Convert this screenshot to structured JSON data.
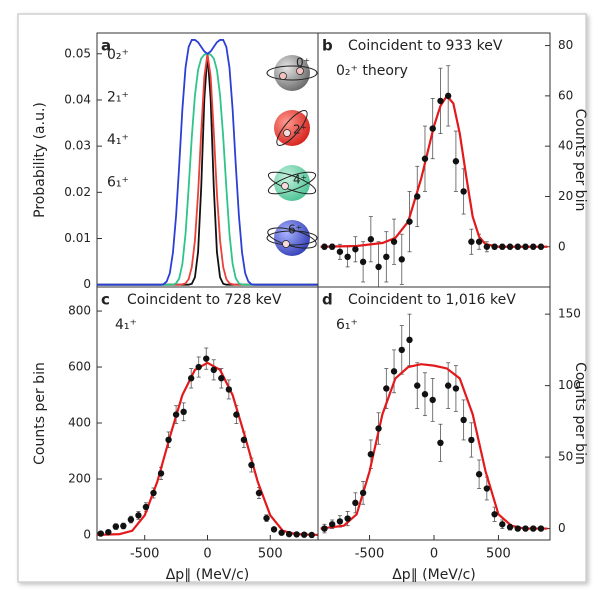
{
  "chart_data": [
    {
      "type": "line",
      "panel": "a",
      "ylabel": "Probability (a.u.)",
      "side": "left",
      "x": [
        -880,
        -400,
        -375,
        -350,
        -325,
        -300,
        -275,
        -250,
        -225,
        -200,
        -175,
        -150,
        -125,
        -100,
        -75,
        -50,
        -25,
        0,
        25,
        50,
        75,
        100,
        125,
        150,
        175,
        200,
        225,
        250,
        275,
        300,
        325,
        350,
        375,
        400,
        880
      ],
      "series": [
        {
          "name": "0₂⁺",
          "color": "#111111",
          "values": [
            0,
            0,
            0,
            0,
            0,
            0,
            0,
            0,
            0,
            0,
            0,
            0,
            0.0002,
            0.0016,
            0.0071,
            0.0211,
            0.0403,
            0.05,
            0.0403,
            0.0211,
            0.0071,
            0.0016,
            0.0002,
            0,
            0,
            0,
            0,
            0,
            0,
            0,
            0,
            0,
            0,
            0,
            0
          ]
        },
        {
          "name": "2₁⁺",
          "color": "#e8413c",
          "values": [
            0,
            0,
            0,
            0,
            0,
            0,
            0,
            0,
            0,
            0.0001,
            0.0003,
            0.0012,
            0.0038,
            0.0096,
            0.0197,
            0.0331,
            0.0451,
            0.05,
            0.0451,
            0.0331,
            0.0197,
            0.0096,
            0.0038,
            0.0012,
            0.0003,
            0.0001,
            0,
            0,
            0,
            0,
            0,
            0,
            0,
            0,
            0
          ]
        },
        {
          "name": "4₁⁺",
          "color": "#2ec48a",
          "values": [
            0,
            0,
            0,
            0,
            0,
            0,
            0,
            0.0003,
            0.0014,
            0.0045,
            0.011,
            0.021,
            0.032,
            0.041,
            0.0465,
            0.049,
            0.0498,
            0.05,
            0.0498,
            0.049,
            0.0465,
            0.041,
            0.032,
            0.021,
            0.011,
            0.0045,
            0.0014,
            0.0003,
            0,
            0,
            0,
            0,
            0,
            0,
            0
          ]
        },
        {
          "name": "6₁⁺",
          "color": "#2b3fd6",
          "values": [
            0,
            0,
            0,
            0.0001,
            0.0007,
            0.0025,
            0.007,
            0.015,
            0.026,
            0.038,
            0.047,
            0.0515,
            0.053,
            0.053,
            0.0525,
            0.0515,
            0.0505,
            0.05,
            0.0505,
            0.0515,
            0.0525,
            0.053,
            0.053,
            0.0515,
            0.047,
            0.038,
            0.026,
            0.015,
            0.007,
            0.0025,
            0.0007,
            0.0001,
            0,
            0,
            0
          ]
        }
      ],
      "icon_labels": [
        "0⁺",
        "2⁺",
        "4⁺",
        "6⁺"
      ],
      "xlim": [
        -880,
        880
      ],
      "ylim": [
        -0.0005,
        0.0545
      ],
      "yticks": [
        0,
        0.01,
        0.02,
        0.03,
        0.04,
        0.05
      ]
    },
    {
      "type": "errorbar",
      "panel": "b",
      "title": "Coincident to 933 keV",
      "ylabel": "Counts per bin",
      "side": "right",
      "color": "#111111",
      "x": [
        -850,
        -790,
        -730,
        -670,
        -610,
        -550,
        -490,
        -430,
        -370,
        -310,
        -250,
        -190,
        -130,
        -70,
        -10,
        50,
        110,
        170,
        230,
        290,
        350,
        410,
        470,
        530,
        590,
        650,
        710,
        770,
        830
      ],
      "values": [
        0,
        0,
        -2,
        -4,
        -1,
        -6,
        3,
        -8,
        -4,
        2,
        -5,
        10,
        20,
        35,
        47,
        58,
        60,
        34,
        22,
        2,
        2,
        0,
        0,
        0,
        0,
        0,
        0,
        0,
        0
      ],
      "errors": [
        1,
        1,
        3,
        4,
        5,
        8,
        9,
        10,
        10,
        9,
        10,
        12,
        12,
        13,
        12,
        13,
        12,
        12,
        9,
        5,
        3,
        2,
        1,
        1,
        1,
        1,
        1,
        1,
        1
      ],
      "fit": {
        "name": "0₂⁺ theory",
        "color": "#e31a1c",
        "x": [
          -880,
          -600,
          -400,
          -300,
          -200,
          -100,
          0,
          50,
          100,
          150,
          200,
          250,
          300,
          350,
          400,
          500,
          880
        ],
        "values": [
          0,
          0.3,
          1.5,
          3.5,
          10,
          27,
          48,
          56,
          60,
          57,
          45,
          28,
          12,
          4,
          1,
          0,
          0
        ]
      },
      "xlim": [
        -900,
        900
      ],
      "ylim": [
        -16,
        85
      ],
      "yticks": [
        0,
        20,
        40,
        60,
        80
      ]
    },
    {
      "type": "errorbar",
      "panel": "c",
      "title": "Coincident to 728 keV",
      "ylabel": "Counts per bin",
      "xlabel": "Δp∥ (MeV/c)",
      "side": "left",
      "color": "#111111",
      "x": [
        -850,
        -790,
        -730,
        -670,
        -610,
        -550,
        -490,
        -430,
        -370,
        -310,
        -250,
        -190,
        -130,
        -70,
        -10,
        50,
        110,
        170,
        230,
        290,
        350,
        410,
        470,
        530,
        590,
        650,
        710,
        770,
        830
      ],
      "values": [
        5,
        10,
        30,
        32,
        55,
        70,
        100,
        150,
        220,
        340,
        430,
        440,
        560,
        600,
        630,
        590,
        560,
        520,
        430,
        340,
        250,
        150,
        60,
        20,
        8,
        3,
        2,
        1,
        0
      ],
      "errors": [
        5,
        6,
        10,
        10,
        12,
        14,
        15,
        18,
        22,
        28,
        32,
        32,
        35,
        36,
        38,
        36,
        35,
        34,
        32,
        28,
        25,
        20,
        12,
        7,
        5,
        3,
        2,
        2,
        1
      ],
      "fit": {
        "name": "4₁⁺",
        "color": "#e31a1c",
        "x": [
          -880,
          -700,
          -600,
          -500,
          -400,
          -300,
          -200,
          -100,
          0,
          100,
          200,
          300,
          400,
          500,
          600,
          700,
          880
        ],
        "values": [
          0,
          3,
          15,
          70,
          190,
          350,
          500,
          590,
          615,
          590,
          500,
          350,
          190,
          70,
          15,
          3,
          0
        ]
      },
      "xlim": [
        -880,
        880
      ],
      "ylim": [
        -18,
        886
      ],
      "yticks": [
        0,
        200,
        400,
        600,
        800
      ],
      "xticks": [
        -500,
        0,
        500
      ]
    },
    {
      "type": "errorbar",
      "panel": "d",
      "title": "Coincident to 1,016 keV",
      "ylabel": "Counts per bin",
      "xlabel": "Δp∥ (MeV/c)",
      "side": "right",
      "color": "#111111",
      "x": [
        -850,
        -790,
        -730,
        -670,
        -610,
        -550,
        -490,
        -430,
        -370,
        -310,
        -250,
        -190,
        -130,
        -70,
        -10,
        50,
        110,
        170,
        230,
        290,
        350,
        410,
        470,
        530,
        590,
        650,
        710,
        770,
        830
      ],
      "values": [
        0,
        3,
        5,
        7,
        18,
        25,
        52,
        70,
        98,
        110,
        125,
        132,
        100,
        94,
        90,
        60,
        100,
        98,
        76,
        62,
        38,
        28,
        10,
        3,
        1,
        0,
        0,
        0,
        0
      ],
      "errors": [
        3,
        3,
        4,
        5,
        7,
        8,
        10,
        11,
        14,
        15,
        17,
        18,
        16,
        15,
        15,
        13,
        16,
        16,
        14,
        12,
        10,
        8,
        5,
        3,
        2,
        1,
        1,
        1,
        1
      ],
      "fit": {
        "name": "6₁⁺",
        "color": "#e31a1c",
        "x": [
          -880,
          -700,
          -600,
          -500,
          -400,
          -300,
          -200,
          -100,
          0,
          100,
          200,
          300,
          400,
          500,
          600,
          700,
          880
        ],
        "values": [
          0,
          2,
          10,
          40,
          80,
          105,
          113,
          115,
          114,
          112,
          105,
          80,
          40,
          10,
          2,
          0,
          0
        ]
      },
      "xlim": [
        -900,
        900
      ],
      "ylim": [
        -8,
        169
      ],
      "yticks": [
        0,
        50,
        100,
        150
      ],
      "xticks": [
        -500,
        0,
        500
      ]
    }
  ]
}
